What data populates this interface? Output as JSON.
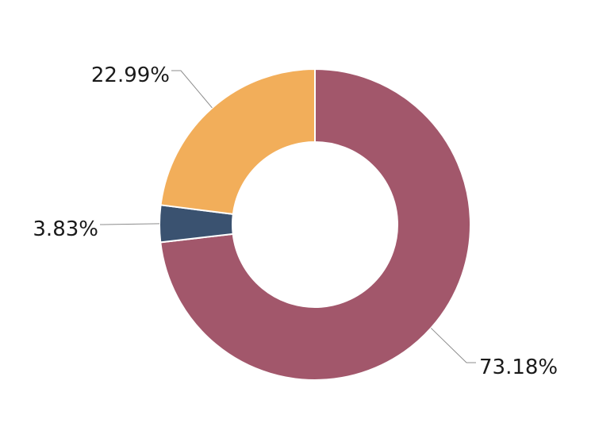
{
  "chart_data": {
    "type": "pie",
    "variant": "donut",
    "slices": [
      {
        "label": "73.18%",
        "value": 73.18,
        "color": "#a2576b"
      },
      {
        "label": "3.83%",
        "value": 3.83,
        "color": "#3a5270"
      },
      {
        "label": "22.99%",
        "value": 22.99,
        "color": "#f2ae5a"
      }
    ],
    "start_angle_deg": 0,
    "direction": "clockwise",
    "legend": "none"
  }
}
